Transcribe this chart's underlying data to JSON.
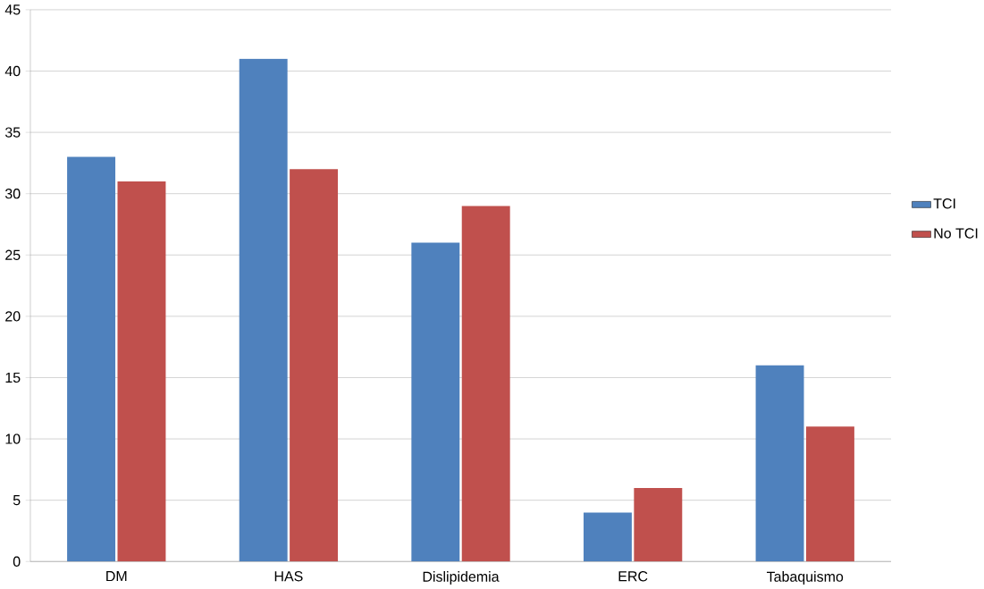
{
  "chart_data": {
    "type": "bar",
    "categories": [
      "DM",
      "HAS",
      "Dislipidemia",
      "ERC",
      "Tabaquismo"
    ],
    "series": [
      {
        "name": "TCI",
        "color": "#4f81bd",
        "values": [
          33,
          41,
          26,
          4,
          16
        ]
      },
      {
        "name": "No TCI",
        "color": "#c0504d",
        "values": [
          31,
          32,
          29,
          6,
          11
        ]
      }
    ],
    "ylim": [
      0,
      45
    ],
    "yticks": [
      0,
      5,
      10,
      15,
      20,
      25,
      30,
      35,
      40,
      45
    ],
    "grid": "y",
    "legend": "right"
  }
}
